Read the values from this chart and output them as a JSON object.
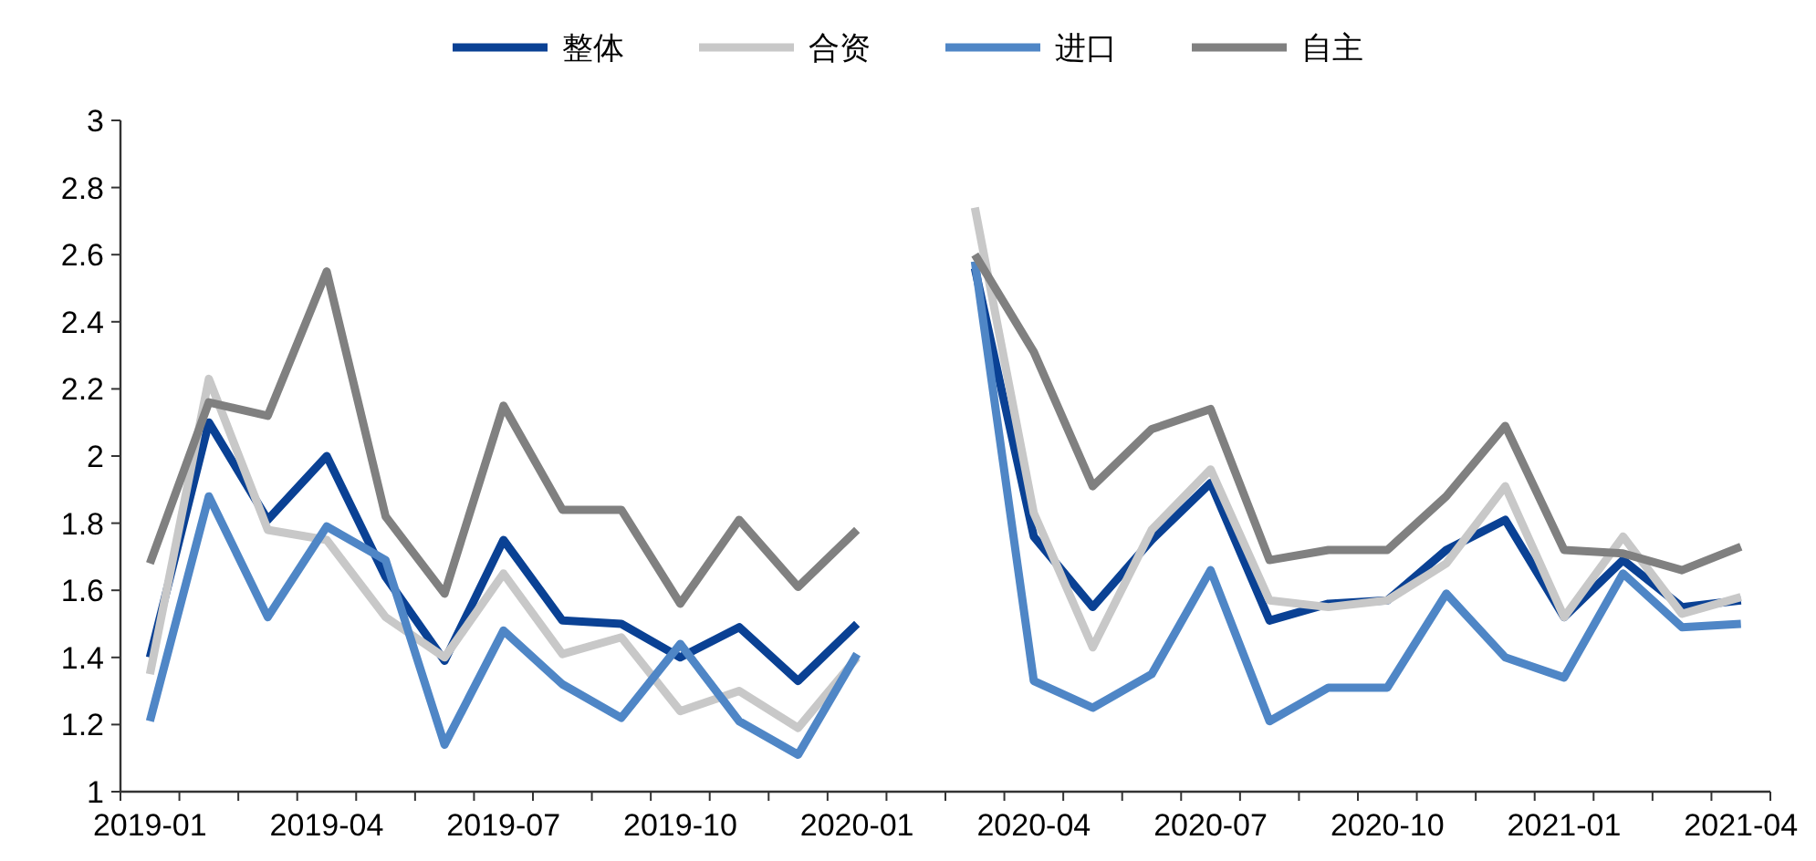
{
  "chart_data": {
    "type": "line",
    "categories": [
      "2019-01",
      null,
      null,
      "2019-04",
      null,
      null,
      "2019-07",
      null,
      null,
      "2019-10",
      null,
      null,
      "2020-01",
      null,
      null,
      "2020-04",
      null,
      null,
      "2020-07",
      null,
      null,
      "2020-10",
      null,
      null,
      "2021-01",
      null,
      null,
      "2021-04"
    ],
    "series": [
      {
        "name": "整体",
        "color": "#0a4194",
        "values": [
          1.4,
          2.1,
          1.81,
          2.0,
          1.64,
          1.39,
          1.75,
          1.51,
          1.5,
          1.4,
          1.49,
          1.33,
          1.5,
          null,
          2.56,
          1.76,
          1.55,
          1.75,
          1.92,
          1.51,
          1.56,
          1.57,
          1.72,
          1.81,
          1.52,
          1.69,
          1.55,
          1.57
        ]
      },
      {
        "name": "合资",
        "color": "#c8c8c8",
        "values": [
          1.35,
          2.23,
          1.78,
          1.75,
          1.52,
          1.4,
          1.65,
          1.41,
          1.46,
          1.24,
          1.3,
          1.19,
          1.4,
          null,
          2.74,
          1.83,
          1.43,
          1.78,
          1.96,
          1.57,
          1.55,
          1.57,
          1.68,
          1.91,
          1.52,
          1.76,
          1.53,
          1.58
        ]
      },
      {
        "name": "进口",
        "color": "#4f86c6",
        "values": [
          1.21,
          1.88,
          1.52,
          1.79,
          1.69,
          1.14,
          1.48,
          1.32,
          1.22,
          1.44,
          1.21,
          1.11,
          1.41,
          null,
          2.58,
          1.33,
          1.25,
          1.35,
          1.66,
          1.21,
          1.31,
          1.31,
          1.59,
          1.4,
          1.34,
          1.65,
          1.49,
          1.5
        ]
      },
      {
        "name": "自主",
        "color": "#808080",
        "values": [
          1.68,
          2.16,
          2.12,
          2.55,
          1.82,
          1.59,
          2.15,
          1.84,
          1.84,
          1.56,
          1.81,
          1.61,
          1.78,
          null,
          2.6,
          2.31,
          1.91,
          2.08,
          2.14,
          1.69,
          1.72,
          1.72,
          1.88,
          2.09,
          1.72,
          1.71,
          1.66,
          1.73
        ]
      }
    ],
    "ylim": [
      1,
      3
    ],
    "yticks": [
      1,
      1.2,
      1.4,
      1.6,
      1.8,
      2,
      2.2,
      2.4,
      2.6,
      2.8,
      3
    ],
    "legend": "top",
    "marker": "none",
    "line_style": "solid"
  }
}
